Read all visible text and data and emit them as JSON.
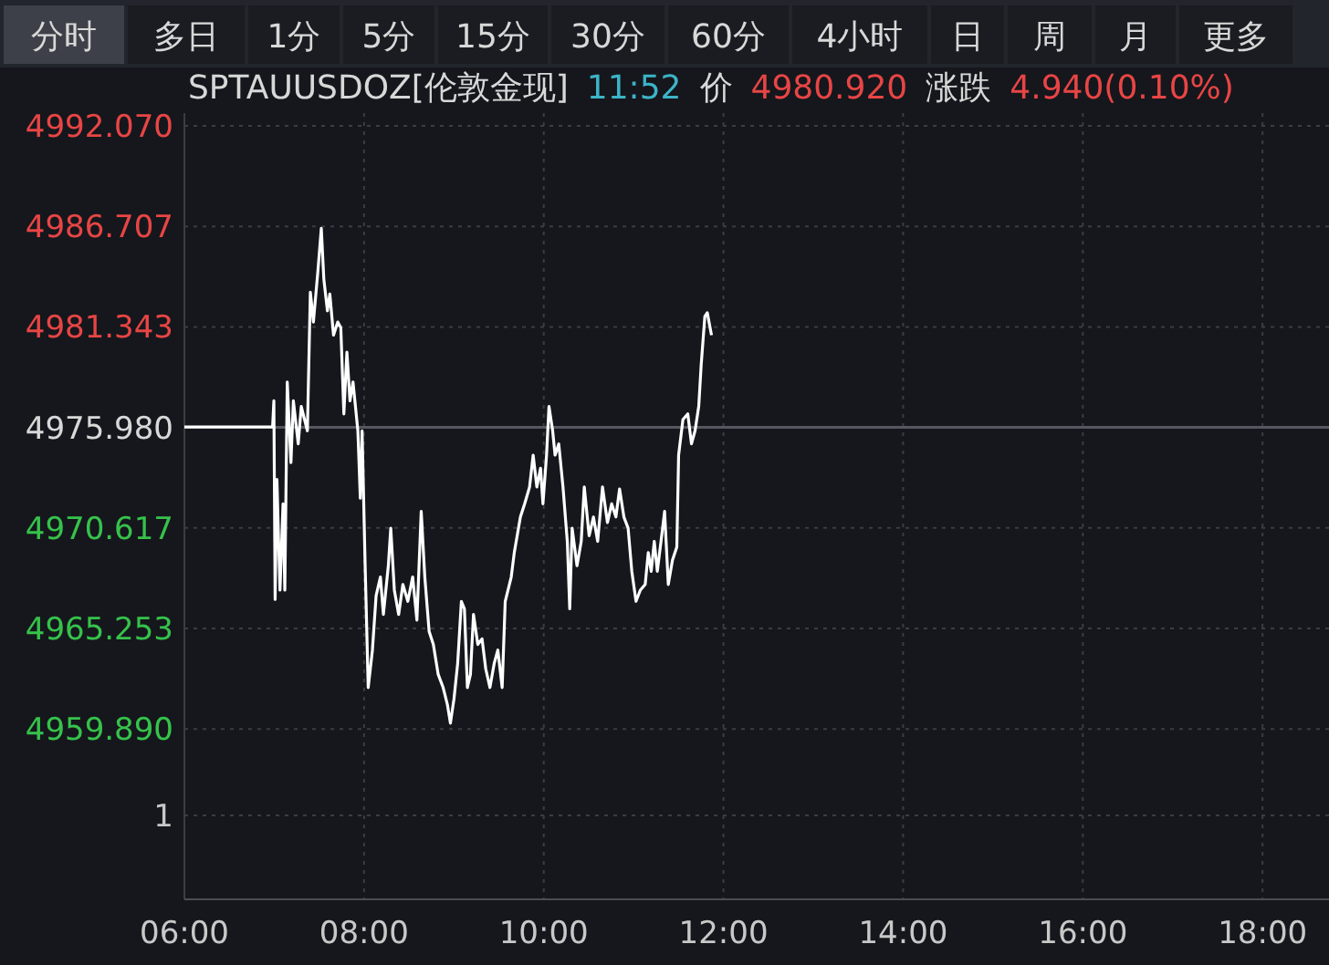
{
  "chart_data": [
    {
      "type": "other",
      "annotations": [
        "分时",
        "多日",
        "1分",
        "5分",
        "15分",
        "30分",
        "60分",
        "4小时",
        "日",
        "周",
        "月",
        "更多"
      ]
    },
    {
      "type": "line",
      "title": "SPTAUUSDOZ[伦敦金现]",
      "annotations": [
        "11:52",
        "价",
        "4980.920",
        "涨跌",
        "4.940(0.10%)",
        "1"
      ],
      "xlim": [
        6,
        18.74
      ],
      "xticks": [
        {
          "value": 6,
          "label": "06:00"
        },
        {
          "value": 8,
          "label": "08:00"
        },
        {
          "value": 10,
          "label": "10:00"
        },
        {
          "value": 12,
          "label": "12:00"
        },
        {
          "value": 14,
          "label": "14:00"
        },
        {
          "value": 16,
          "label": "16:00"
        },
        {
          "value": 18,
          "label": "18:00"
        }
      ],
      "ylim": [
        4950.8,
        4992.75
      ],
      "yticks": [
        {
          "value": 4992.07,
          "label": "4992.070"
        },
        {
          "value": 4986.707,
          "label": "4986.707"
        },
        {
          "value": 4981.343,
          "label": "4981.343"
        },
        {
          "value": 4975.98,
          "label": "4975.980"
        },
        {
          "value": 4970.617,
          "label": "4970.617"
        },
        {
          "value": 4965.253,
          "label": "4965.253"
        },
        {
          "value": 4959.89,
          "label": "4959.890"
        }
      ],
      "grid": true,
      "ref_lines": [
        {
          "axis": "y",
          "value": 4975.98,
          "color": "#55585f"
        }
      ],
      "x": [
        6.0,
        6.982,
        6.996,
        7.01,
        7.03,
        7.064,
        7.098,
        7.118,
        7.145,
        7.186,
        7.213,
        7.267,
        7.301,
        7.369,
        7.402,
        7.436,
        7.484,
        7.524,
        7.552,
        7.592,
        7.619,
        7.66,
        7.707,
        7.741,
        7.775,
        7.809,
        7.843,
        7.877,
        7.931,
        7.958,
        7.978,
        8.012,
        8.046,
        8.093,
        8.134,
        8.182,
        8.215,
        8.27,
        8.297,
        8.337,
        8.385,
        8.432,
        8.487,
        8.541,
        8.588,
        8.636,
        8.676,
        8.724,
        8.771,
        8.825,
        8.88,
        8.927,
        8.961,
        9.001,
        9.042,
        9.083,
        9.117,
        9.15,
        9.184,
        9.218,
        9.266,
        9.313,
        9.354,
        9.401,
        9.449,
        9.489,
        9.537,
        9.571,
        9.638,
        9.672,
        9.74,
        9.787,
        9.842,
        9.882,
        9.923,
        9.964,
        9.991,
        10.031,
        10.058,
        10.099,
        10.126,
        10.167,
        10.214,
        10.262,
        10.289,
        10.316,
        10.37,
        10.417,
        10.451,
        10.505,
        10.553,
        10.6,
        10.654,
        10.709,
        10.756,
        10.803,
        10.844,
        10.892,
        10.939,
        10.98,
        11.027,
        11.075,
        11.129,
        11.163,
        11.196,
        11.23,
        11.264,
        11.305,
        11.345,
        11.386,
        11.433,
        11.481,
        11.501,
        11.549,
        11.603,
        11.644,
        11.684,
        11.725,
        11.752,
        11.793,
        11.82,
        11.867
      ],
      "series": [
        {
          "color": "#ffffff",
          "values": [
            4976.0,
            4976.0,
            4977.4,
            4966.8,
            4973.2,
            4967.3,
            4971.9,
            4967.3,
            4978.4,
            4974.1,
            4977.4,
            4975.1,
            4977.1,
            4975.8,
            4983.2,
            4981.6,
            4984.2,
            4986.6,
            4983.9,
            4982.2,
            4983.1,
            4980.9,
            4981.6,
            4981.3,
            4976.7,
            4980.0,
            4977.4,
            4978.4,
            4975.8,
            4972.2,
            4975.8,
            4968.6,
            4962.1,
            4964.1,
            4967.0,
            4968.0,
            4966.0,
            4968.6,
            4970.6,
            4967.3,
            4966.0,
            4967.6,
            4966.7,
            4968.0,
            4965.7,
            4971.5,
            4968.0,
            4965.1,
            4964.4,
            4962.8,
            4962.1,
            4961.2,
            4960.2,
            4961.5,
            4963.4,
            4966.7,
            4966.3,
            4962.1,
            4962.8,
            4966.0,
            4964.4,
            4964.7,
            4963.1,
            4962.1,
            4963.4,
            4964.1,
            4962.1,
            4966.7,
            4968.0,
            4969.3,
            4971.2,
            4971.9,
            4972.8,
            4974.5,
            4972.8,
            4973.8,
            4971.9,
            4974.5,
            4977.1,
            4975.8,
            4974.5,
            4975.1,
            4972.8,
            4969.9,
            4966.3,
            4970.6,
            4968.6,
            4969.9,
            4972.8,
            4970.2,
            4971.2,
            4969.9,
            4972.8,
            4970.9,
            4971.9,
            4971.2,
            4972.7,
            4971.2,
            4970.6,
            4968.3,
            4966.7,
            4967.3,
            4967.6,
            4969.3,
            4968.3,
            4969.9,
            4968.3,
            4969.9,
            4971.5,
            4967.6,
            4968.9,
            4969.6,
            4974.5,
            4976.4,
            4976.7,
            4975.1,
            4975.8,
            4977.1,
            4979.3,
            4981.9,
            4982.1,
            4980.9
          ]
        }
      ]
    }
  ]
}
